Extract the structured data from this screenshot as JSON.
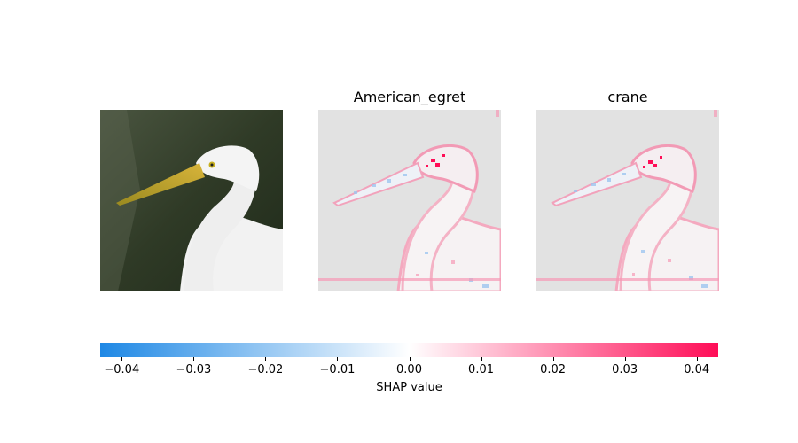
{
  "chart_data": {
    "type": "heatmap",
    "panels": [
      {
        "title": "",
        "kind": "input-image"
      },
      {
        "title": "American_egret",
        "kind": "shap-map"
      },
      {
        "title": "crane",
        "kind": "shap-map"
      }
    ],
    "colorbar": {
      "label": "SHAP value",
      "range": [
        -0.043,
        0.043
      ],
      "ticks": [
        -0.04,
        -0.03,
        -0.02,
        -0.01,
        0.0,
        0.01,
        0.02,
        0.03,
        0.04
      ],
      "tick_labels": [
        "−0.04",
        "−0.03",
        "−0.02",
        "−0.01",
        "0.00",
        "0.01",
        "0.02",
        "0.03",
        "0.04"
      ],
      "colors": {
        "negative": "#1e88e5",
        "zero": "#ffffff",
        "positive": "#ff0d57"
      }
    }
  }
}
